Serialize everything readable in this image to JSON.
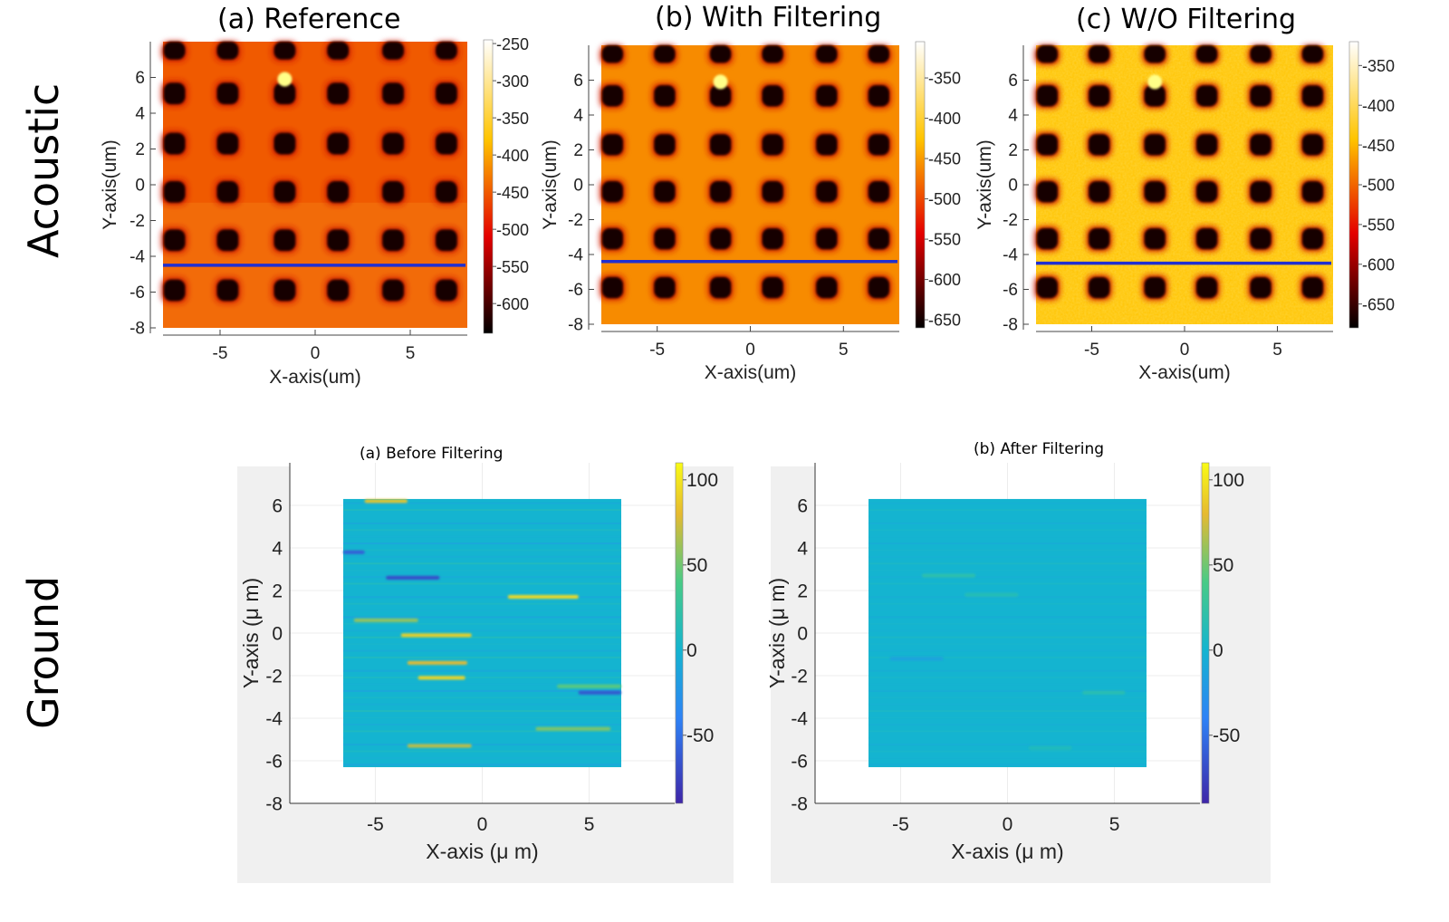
{
  "row_labels": {
    "acoustic": "Acoustic",
    "ground": "Ground"
  },
  "chart_data": [
    {
      "type": "heatmap",
      "title": "(a) Reference",
      "xlabel": "X-axis(um)",
      "ylabel": "Y-axis(um)",
      "xlim": [
        -8,
        8
      ],
      "ylim": [
        -8,
        8
      ],
      "xticks": [
        -5,
        0,
        5
      ],
      "yticks": [
        6,
        4,
        2,
        0,
        -2,
        -4,
        -6,
        -8
      ],
      "colorbar": {
        "ticks": [
          -250,
          -300,
          -350,
          -400,
          -450,
          -500,
          -550,
          -600
        ],
        "range": [
          -640,
          -245
        ],
        "colormap": "hot"
      },
      "pattern": {
        "columns_x": [
          -7.4,
          -4.6,
          -1.6,
          1.2,
          4.1,
          6.9
        ],
        "rows_y": [
          7.6,
          5.1,
          2.3,
          -0.4,
          -3.1,
          -5.9
        ],
        "background_value": -450
      },
      "line_y": -4.5,
      "line_color": "#1f2fd0"
    },
    {
      "type": "heatmap",
      "title": "(b) With Filtering",
      "xlabel": "X-axis(um)",
      "ylabel": "Y-axis(um)",
      "xlim": [
        -8,
        8
      ],
      "ylim": [
        -8,
        8
      ],
      "xticks": [
        -5,
        0,
        5
      ],
      "yticks": [
        6,
        4,
        2,
        0,
        -2,
        -4,
        -6,
        -8
      ],
      "colorbar": {
        "ticks": [
          -350,
          -400,
          -450,
          -500,
          -550,
          -600,
          -650
        ],
        "range": [
          -660,
          -305
        ],
        "colormap": "hot"
      },
      "pattern": {
        "columns_x": [
          -7.4,
          -4.6,
          -1.6,
          1.2,
          4.1,
          6.9
        ],
        "rows_y": [
          7.6,
          5.1,
          2.3,
          -0.4,
          -3.1,
          -5.9
        ],
        "background_value": -460
      },
      "line_y": -4.4,
      "line_color": "#1f2fd0"
    },
    {
      "type": "heatmap",
      "title": "(c) W/O Filtering",
      "xlabel": "X-axis(um)",
      "ylabel": "Y-axis(um)",
      "xlim": [
        -8,
        8
      ],
      "ylim": [
        -8,
        8
      ],
      "xticks": [
        -5,
        0,
        5
      ],
      "yticks": [
        6,
        4,
        2,
        0,
        -2,
        -4,
        -6,
        -8
      ],
      "colorbar": {
        "ticks": [
          -350,
          -400,
          -450,
          -500,
          -550,
          -600,
          -650
        ],
        "range": [
          -680,
          -320
        ],
        "colormap": "hot"
      },
      "pattern": {
        "columns_x": [
          -7.4,
          -4.6,
          -1.6,
          1.2,
          4.1,
          6.9
        ],
        "rows_y": [
          7.6,
          5.1,
          2.3,
          -0.4,
          -3.1,
          -5.9
        ],
        "background_value": -440
      },
      "line_y": -4.5,
      "line_color": "#1f2fd0"
    },
    {
      "type": "heatmap",
      "title": "(a) Before Filtering",
      "xlabel": "X-axis (μ m)",
      "ylabel": "Y-axis (μ m)",
      "xlim": [
        -9,
        9
      ],
      "ylim": [
        -8,
        8
      ],
      "xticks": [
        -5,
        0,
        5
      ],
      "yticks": [
        6,
        4,
        2,
        0,
        -2,
        -4,
        -6,
        -8
      ],
      "colorbar": {
        "ticks": [
          100,
          50,
          0,
          -50
        ],
        "range": [
          -90,
          110
        ],
        "colormap": "parula"
      },
      "data_extent": {
        "x": [
          -6.5,
          6.5
        ],
        "y": [
          -6.3,
          6.3
        ]
      },
      "streaks": [
        {
          "x": [
            -5.5,
            -3.5
          ],
          "y": 6.2,
          "value": 85
        },
        {
          "x": [
            1.2,
            4.5
          ],
          "y": 1.7,
          "value": 95
        },
        {
          "x": [
            -3.8,
            -0.5
          ],
          "y": -0.1,
          "value": 90
        },
        {
          "x": [
            -3.5,
            -0.7
          ],
          "y": -1.4,
          "value": 80
        },
        {
          "x": [
            -3.0,
            -0.8
          ],
          "y": -2.1,
          "value": 92
        },
        {
          "x": [
            -6.0,
            -3.0
          ],
          "y": 0.6,
          "value": 60
        },
        {
          "x": [
            2.5,
            6.0
          ],
          "y": -4.5,
          "value": 55
        },
        {
          "x": [
            -3.5,
            -0.5
          ],
          "y": -5.3,
          "value": 70
        },
        {
          "x": [
            -4.5,
            -2.0
          ],
          "y": 2.6,
          "value": -70
        },
        {
          "x": [
            -6.5,
            -5.5
          ],
          "y": 3.8,
          "value": -60
        },
        {
          "x": [
            4.5,
            6.5
          ],
          "y": -2.8,
          "value": -65
        },
        {
          "x": [
            3.5,
            6.5
          ],
          "y": -2.5,
          "value": 45
        }
      ]
    },
    {
      "type": "heatmap",
      "title": "(b) After Filtering",
      "xlabel": "X-axis (μ m)",
      "ylabel": "Y-axis (μ m)",
      "xlim": [
        -9,
        9
      ],
      "ylim": [
        -8,
        8
      ],
      "xticks": [
        -5,
        0,
        5
      ],
      "yticks": [
        6,
        4,
        2,
        0,
        -2,
        -4,
        -6,
        -8
      ],
      "colorbar": {
        "ticks": [
          100,
          50,
          0,
          -50
        ],
        "range": [
          -90,
          110
        ],
        "colormap": "parula"
      },
      "data_extent": {
        "x": [
          -6.5,
          6.5
        ],
        "y": [
          -6.3,
          6.3
        ]
      },
      "streaks": [
        {
          "x": [
            -4.0,
            -1.5
          ],
          "y": 2.7,
          "value": 20
        },
        {
          "x": [
            -2.0,
            0.5
          ],
          "y": 1.8,
          "value": 15
        },
        {
          "x": [
            3.5,
            5.5
          ],
          "y": -2.8,
          "value": 18
        },
        {
          "x": [
            -5.5,
            -3.0
          ],
          "y": -1.2,
          "value": -15
        },
        {
          "x": [
            1.0,
            3.0
          ],
          "y": -5.4,
          "value": 12
        }
      ]
    }
  ]
}
